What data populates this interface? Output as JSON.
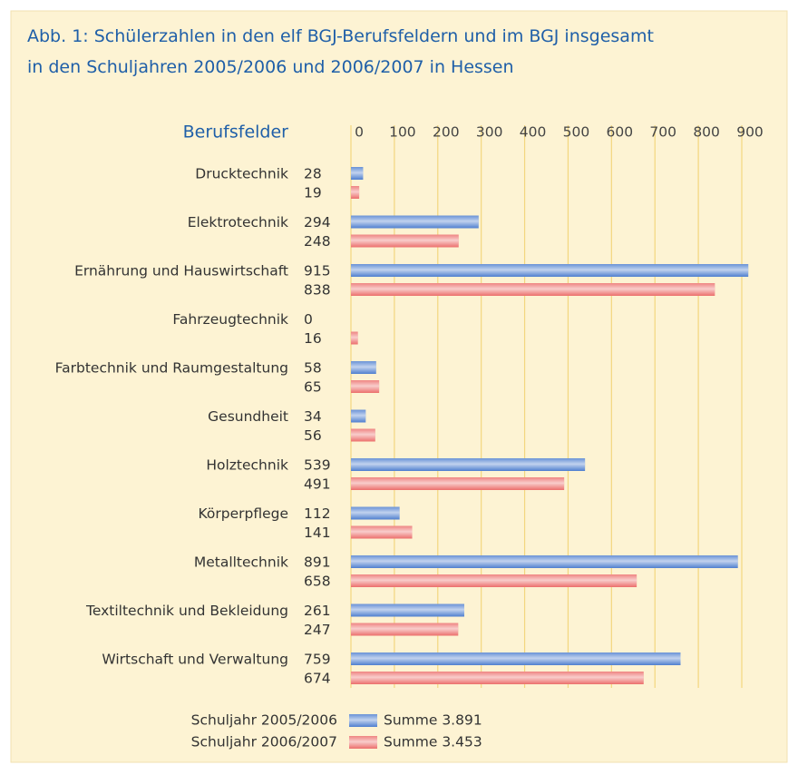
{
  "chart_data": {
    "type": "bar",
    "orientation": "horizontal",
    "title": [
      "Abb. 1: Schülerzahlen in den elf BGJ-Berufsfeldern und im BGJ insgesamt",
      "in den Schuljahren 2005/2006 und 2006/2007 in Hessen"
    ],
    "y_label": "Berufsfelder",
    "categories": [
      "Drucktechnik",
      "Elektrotechnik",
      "Ernährung und Hauswirtschaft",
      "Fahrzeugtechnik",
      "Farbtechnik und Raumgestaltung",
      "Gesundheit",
      "Holztechnik",
      "Körperpflege",
      "Metalltechnik",
      "Textiltechnik und Bekleidung",
      "Wirtschaft und Verwaltung"
    ],
    "series": [
      {
        "name": "Schuljahr 2005/2006",
        "color": "#4f7fcf",
        "sum_label": "Summe 3.891",
        "values": [
          28,
          294,
          915,
          0,
          58,
          34,
          539,
          112,
          891,
          261,
          759
        ]
      },
      {
        "name": "Schuljahr 2006/2007",
        "color": "#ec6f6c",
        "sum_label": "Summe 3.453",
        "values": [
          19,
          248,
          838,
          16,
          65,
          56,
          491,
          141,
          658,
          247,
          674
        ]
      }
    ],
    "xlim": [
      0,
      900
    ],
    "xticks": [
      0,
      100,
      200,
      300,
      400,
      500,
      600,
      700,
      800,
      900
    ],
    "grid": true
  }
}
